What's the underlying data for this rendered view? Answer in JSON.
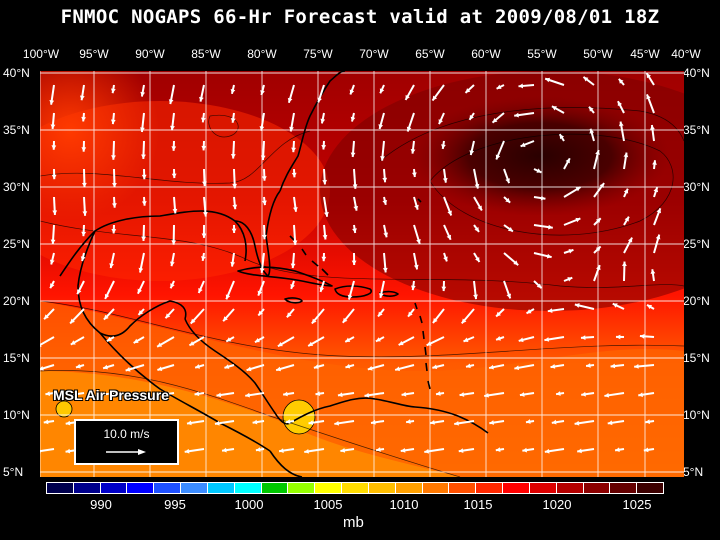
{
  "title": "FNMOC NOGAPS 66-Hr Forecast valid at 2009/08/01 18Z",
  "longitude_labels": [
    "100°W",
    "95°W",
    "90°W",
    "85°W",
    "80°W",
    "75°W",
    "70°W",
    "65°W",
    "60°W",
    "55°W",
    "50°W",
    "45°W",
    "40°W"
  ],
  "latitude_labels": [
    "40°N",
    "35°N",
    "30°N",
    "25°N",
    "20°N",
    "15°N",
    "10°N",
    "5°N"
  ],
  "map": {
    "extent": {
      "lon_min": -100,
      "lon_max": -40,
      "lat_min": 5,
      "lat_max": 40
    },
    "field": "MSL Air Pressure",
    "field_overlay_label": "MSL Air Pressure",
    "vector_field": "wind"
  },
  "reference_vector": {
    "label": "10.0 m/s"
  },
  "colorbar": {
    "colors": [
      "#00004e",
      "#00008c",
      "#0000c8",
      "#0000ff",
      "#1e50ff",
      "#3c8cff",
      "#00c8ff",
      "#00ffff",
      "#00c800",
      "#96ff00",
      "#ffff00",
      "#ffdc00",
      "#ffbe00",
      "#ffa000",
      "#ff7800",
      "#ff5000",
      "#ff2800",
      "#ff0000",
      "#dc0000",
      "#b40000",
      "#8c0000",
      "#640000",
      "#3c0000"
    ],
    "labels": [
      "990",
      "995",
      "1000",
      "1005",
      "1010",
      "1015",
      "1020",
      "1025"
    ],
    "units": "mb"
  }
}
